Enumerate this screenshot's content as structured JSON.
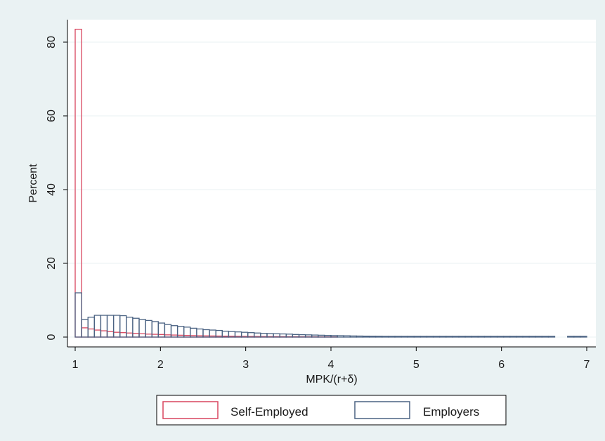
{
  "chart_data": {
    "type": "bar",
    "subtype": "overlaid-histogram",
    "xlabel": "MPK/(r+δ)",
    "ylabel": "Percent",
    "xlim": [
      1,
      7
    ],
    "ylim": [
      0,
      85
    ],
    "xticks": [
      "1",
      "2",
      "3",
      "4",
      "5",
      "6",
      "7"
    ],
    "yticks": [
      "0",
      "20",
      "40",
      "60",
      "80"
    ],
    "grid": true,
    "legend_position": "bottom",
    "colors": {
      "outer_background": "#eaf2f3",
      "plot_background": "#ffffff",
      "grid": "#eaf2f3",
      "self_employed": "#d9455f",
      "employers": "#4a6282"
    },
    "bin_width": 0.075,
    "series": [
      {
        "name": "Self-Employed",
        "bin_start": [
          1.0,
          1.075,
          1.15,
          1.225,
          1.3,
          1.375,
          1.45,
          1.525,
          1.6,
          1.675,
          1.75,
          1.825,
          1.9,
          1.975,
          2.05,
          2.125,
          2.2,
          2.275,
          2.35,
          2.425,
          2.5,
          2.575,
          2.65,
          2.725,
          2.8,
          2.875,
          2.95,
          3.025,
          3.1,
          3.175,
          3.25,
          3.325,
          3.4,
          3.475,
          3.55,
          3.625,
          3.7,
          3.775,
          3.85,
          3.925,
          4.0
        ],
        "values": [
          83.5,
          2.5,
          2.2,
          1.9,
          1.7,
          1.5,
          1.3,
          1.2,
          1.1,
          1.0,
          0.9,
          0.8,
          0.75,
          0.7,
          0.6,
          0.55,
          0.5,
          0.45,
          0.4,
          0.35,
          0.33,
          0.3,
          0.28,
          0.25,
          0.22,
          0.2,
          0.18,
          0.16,
          0.15,
          0.14,
          0.13,
          0.12,
          0.11,
          0.1,
          0.09,
          0.08,
          0.07,
          0.06,
          0.05,
          0.05,
          0.04
        ]
      },
      {
        "name": "Employers",
        "bin_start": [
          1.0,
          1.075,
          1.15,
          1.225,
          1.3,
          1.375,
          1.45,
          1.525,
          1.6,
          1.675,
          1.75,
          1.825,
          1.9,
          1.975,
          2.05,
          2.125,
          2.2,
          2.275,
          2.35,
          2.425,
          2.5,
          2.575,
          2.65,
          2.725,
          2.8,
          2.875,
          2.95,
          3.025,
          3.1,
          3.175,
          3.25,
          3.325,
          3.4,
          3.475,
          3.55,
          3.625,
          3.7,
          3.775,
          3.85,
          3.925,
          4.0,
          4.075,
          4.15,
          4.225,
          4.3,
          4.375,
          4.45,
          4.525,
          4.6,
          4.675,
          4.75,
          4.825,
          4.9,
          4.975,
          5.05,
          5.125,
          5.2,
          5.275,
          5.35,
          5.425,
          5.5,
          5.575,
          5.65,
          5.725,
          5.8,
          5.875,
          5.95,
          6.025,
          6.1,
          6.175,
          6.25,
          6.325,
          6.4,
          6.475,
          6.55,
          6.625,
          6.7,
          6.775,
          6.85,
          6.925
        ],
        "values": [
          12.0,
          4.8,
          5.4,
          5.9,
          5.9,
          5.9,
          5.9,
          5.8,
          5.4,
          5.1,
          4.8,
          4.5,
          4.2,
          3.8,
          3.4,
          3.1,
          2.9,
          2.7,
          2.4,
          2.2,
          2.0,
          1.9,
          1.8,
          1.6,
          1.5,
          1.4,
          1.3,
          1.2,
          1.1,
          1.0,
          0.95,
          0.9,
          0.85,
          0.8,
          0.7,
          0.65,
          0.6,
          0.55,
          0.5,
          0.45,
          0.4,
          0.38,
          0.35,
          0.3,
          0.28,
          0.25,
          0.23,
          0.22,
          0.2,
          0.2,
          0.2,
          0.2,
          0.2,
          0.2,
          0.2,
          0.2,
          0.2,
          0.2,
          0.2,
          0.2,
          0.2,
          0.2,
          0.2,
          0.2,
          0.2,
          0.2,
          0.2,
          0.2,
          0.2,
          0.2,
          0.2,
          0.2,
          0.2,
          0.2,
          0.2,
          0.0,
          0.0,
          0.2,
          0.2,
          0.2
        ]
      }
    ]
  }
}
